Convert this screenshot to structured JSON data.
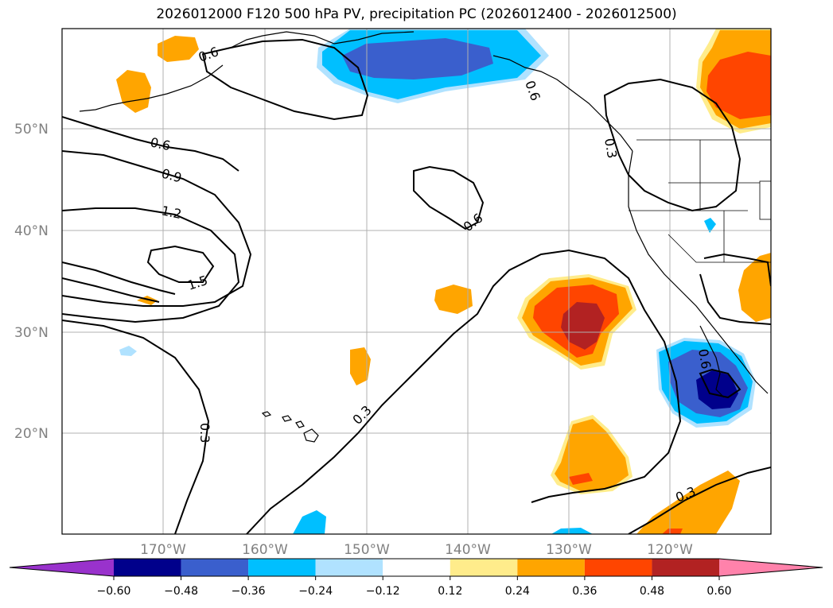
{
  "title": "2026012000 F120 500 hPa PV, precipitation PC (2026012400 - 2026012500)",
  "lat_labels": [
    "50°N",
    "40°N",
    "30°N",
    "20°N"
  ],
  "lon_labels": [
    "170°W",
    "160°W",
    "150°W",
    "140°W",
    "130°W",
    "120°W"
  ],
  "contour_labels": [
    "0.6",
    "0.6",
    "0.9",
    "1.2",
    "1.5",
    "0.6",
    "0.3",
    "0.3",
    "0.3",
    "0.6",
    "0.3",
    "0.6"
  ],
  "colorbar": {
    "ticks": [
      "−0.60",
      "−0.48",
      "−0.36",
      "−0.24",
      "−0.12",
      "0.12",
      "0.24",
      "0.36",
      "0.48",
      "0.60"
    ],
    "colors": [
      "#9932CC",
      "#00008B",
      "#3A5FCD",
      "#00BFFF",
      "#B0E2FF",
      "#FFFFFF",
      "#FFEC8B",
      "#FFA500",
      "#FF4500",
      "#B22222",
      "#FF82AB"
    ]
  },
  "colors": {
    "neg_strong": "#00008B",
    "neg_mid": "#3A5FCD",
    "neg_weak": "#00BFFF",
    "neg_faint": "#B0E2FF",
    "pos_faint": "#FFEC8B",
    "pos_weak": "#FFA500",
    "pos_mid": "#FF4500",
    "pos_strong": "#B22222"
  }
}
